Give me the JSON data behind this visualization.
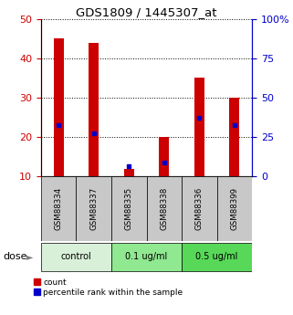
{
  "title": "GDS1809 / 1445307_at",
  "samples": [
    "GSM88334",
    "GSM88337",
    "GSM88335",
    "GSM88338",
    "GSM88336",
    "GSM88399"
  ],
  "count_values": [
    45,
    44,
    12,
    20,
    35,
    30
  ],
  "percentile_values": [
    23,
    21,
    12.5,
    13.5,
    25,
    23
  ],
  "groups": [
    {
      "label": "control",
      "indices": [
        0,
        1
      ],
      "color": "#d8f0d8"
    },
    {
      "label": "0.1 ug/ml",
      "indices": [
        2,
        3
      ],
      "color": "#90e890"
    },
    {
      "label": "0.5 ug/ml",
      "indices": [
        4,
        5
      ],
      "color": "#58d858"
    }
  ],
  "ylim_left": [
    10,
    50
  ],
  "ylim_right": [
    0,
    100
  ],
  "yticks_left": [
    10,
    20,
    30,
    40,
    50
  ],
  "yticks_right": [
    0,
    25,
    50,
    75,
    100
  ],
  "ytick_labels_right": [
    "0",
    "25",
    "50",
    "75",
    "100%"
  ],
  "bar_color": "#cc0000",
  "percentile_color": "#0000cc",
  "left_tick_color": "#cc0000",
  "right_tick_color": "#0000cc",
  "sample_bg_color": "#c8c8c8",
  "dose_label": "dose",
  "legend_count": "count",
  "legend_percentile": "percentile rank within the sample",
  "bar_bottom": 10
}
